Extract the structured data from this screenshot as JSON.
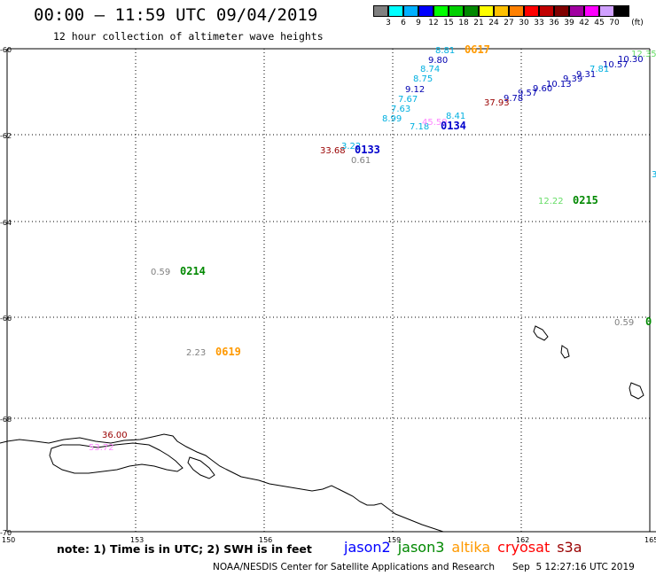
{
  "header": {
    "title": "00:00 – 11:59 UTC 09/04/2019",
    "subtitle": "12 hour collection of altimeter wave heights"
  },
  "color_scale": {
    "colors": [
      "#808080",
      "#00ffff",
      "#00b0ff",
      "#0000ff",
      "#00ff00",
      "#00d000",
      "#008800",
      "#ffff00",
      "#ffc000",
      "#ff8000",
      "#ff0000",
      "#c00000",
      "#800000",
      "#a000a0",
      "#ff00ff",
      "#d0a0ff",
      "#000000"
    ],
    "labels": [
      "3",
      "6",
      "9",
      "12",
      "15",
      "18",
      "21",
      "24",
      "27",
      "30",
      "33",
      "36",
      "39",
      "42",
      "45",
      "70"
    ],
    "unit": "(ft)"
  },
  "axes": {
    "lat_labels": [
      "-60",
      "-62",
      "-64",
      "-66",
      "-68",
      "-70"
    ],
    "lon_labels": [
      "150",
      "153",
      "156",
      "159",
      "162",
      "165"
    ]
  },
  "tracks": [
    {
      "text": "8.81",
      "color": "#00b0e0"
    },
    {
      "text": "0617",
      "color": "#ff9900"
    },
    {
      "text": "9.80",
      "color": "#0000b0"
    },
    {
      "text": "8.74",
      "color": "#00b0e0"
    },
    {
      "text": "8.75",
      "color": "#00b0e0"
    },
    {
      "text": "9.12",
      "color": "#0000b0"
    },
    {
      "text": "7.67",
      "color": "#00b0e0"
    },
    {
      "text": "7.63",
      "color": "#00b0e0"
    },
    {
      "text": "8.99",
      "color": "#00b0e0"
    },
    {
      "text": "7.18",
      "color": "#00b0e0"
    },
    {
      "text": "45.59",
      "color": "#ff88ff"
    },
    {
      "text": "8.41",
      "color": "#00b0e0"
    },
    {
      "text": "0134",
      "color": "#0000cc"
    },
    {
      "text": "12.35",
      "color": "#66dd66"
    },
    {
      "text": "10.30",
      "color": "#0000b0"
    },
    {
      "text": "10.57",
      "color": "#0000b0"
    },
    {
      "text": "7.81",
      "color": "#00b0e0"
    },
    {
      "text": "9.31",
      "color": "#0000b0"
    },
    {
      "text": "9.39",
      "color": "#0000b0"
    },
    {
      "text": "10.13",
      "color": "#0000b0"
    },
    {
      "text": "9.60",
      "color": "#0000b0"
    },
    {
      "text": "9.57",
      "color": "#0000b0"
    },
    {
      "text": "9.78",
      "color": "#0000b0"
    },
    {
      "text": "37.93",
      "color": "#990000"
    },
    {
      "text": "33.68",
      "color": "#990000"
    },
    {
      "text": "3.22",
      "color": "#00b0e0"
    },
    {
      "text": "0133",
      "color": "#0000cc"
    },
    {
      "text": "0.61",
      "color": "#808080"
    },
    {
      "text": "3",
      "color": "#00b0e0"
    },
    {
      "text": "12.22",
      "color": "#66dd66"
    },
    {
      "text": "0215",
      "color": "#008800"
    },
    {
      "text": "0.59",
      "color": "#808080"
    },
    {
      "text": "0214",
      "color": "#008800"
    },
    {
      "text": "0.59",
      "color": "#808080"
    },
    {
      "text": "0",
      "color": "#008800"
    },
    {
      "text": "2.23",
      "color": "#808080"
    },
    {
      "text": "0619",
      "color": "#ff9900"
    },
    {
      "text": "36.00",
      "color": "#990000"
    },
    {
      "text": "53.72",
      "color": "#ff88ff"
    }
  ],
  "note": "note: 1) Time is in UTC; 2) SWH is in feet",
  "missions": [
    {
      "name": "jason2",
      "color": "#0000ff"
    },
    {
      "name": "jason3",
      "color": "#008800"
    },
    {
      "name": "altika",
      "color": "#ff9900"
    },
    {
      "name": "cryosat",
      "color": "#ff0000"
    },
    {
      "name": "s3a",
      "color": "#990000"
    }
  ],
  "footer": {
    "center": "NOAA/NESDIS Center for Satellite Applications and Research",
    "timestamp": "Sep  5 12:27:16 UTC 2019"
  }
}
